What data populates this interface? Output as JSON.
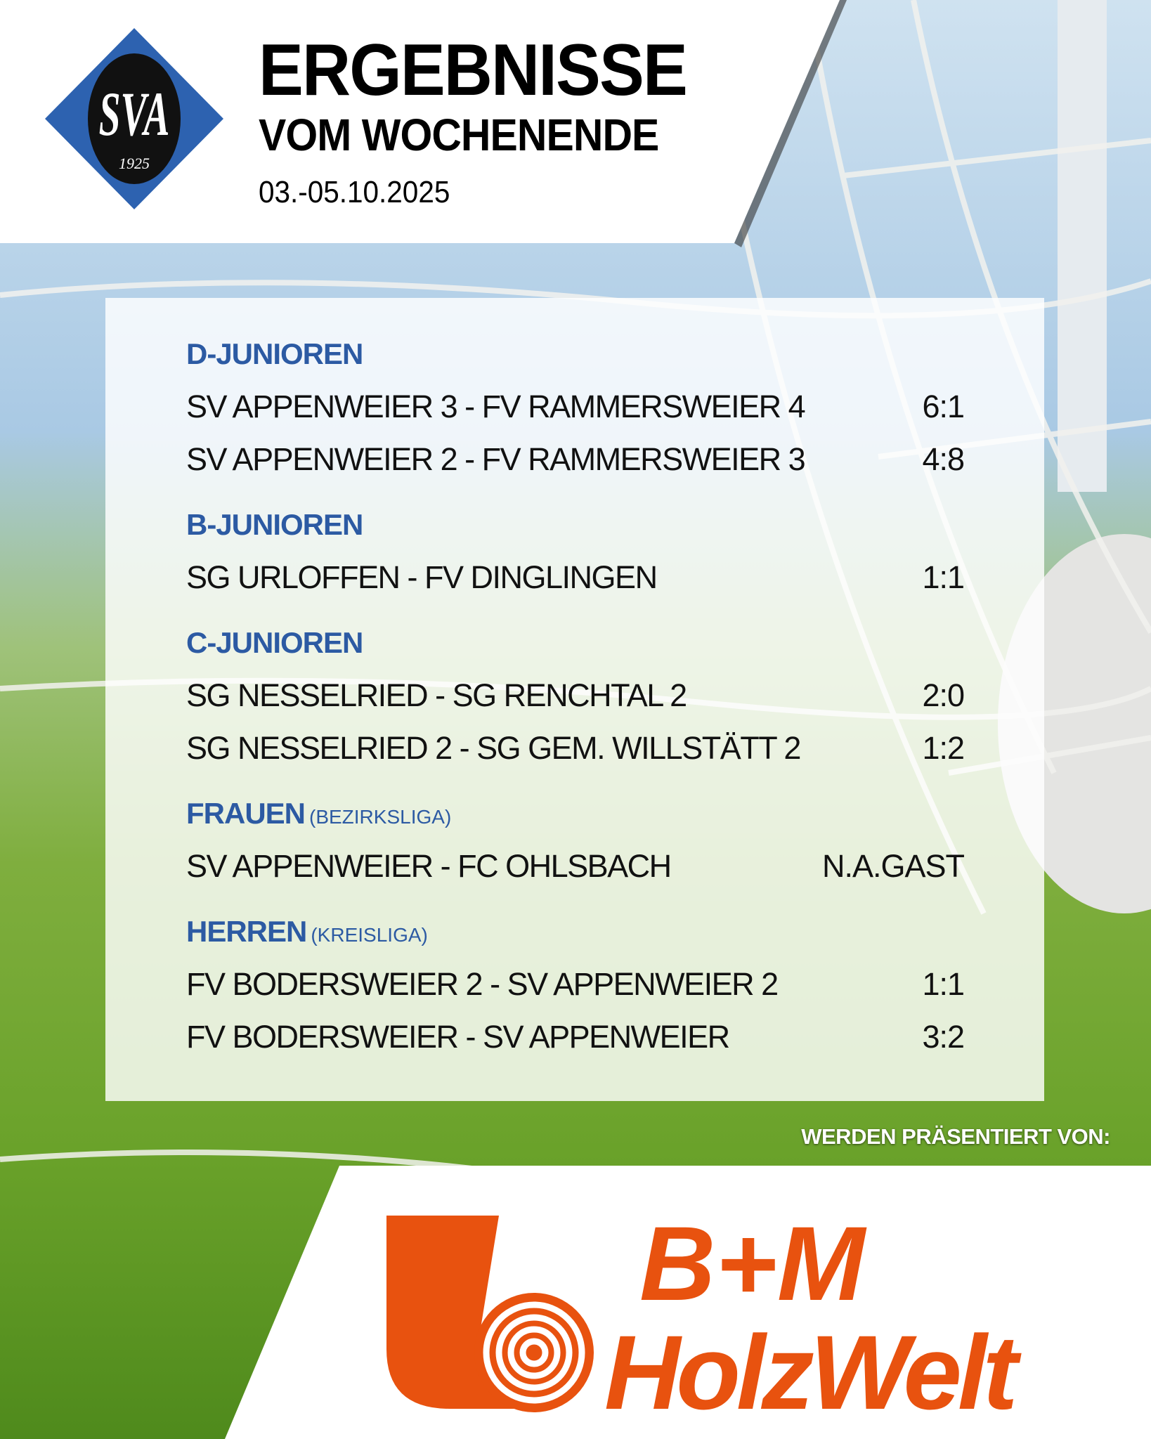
{
  "header": {
    "club_logo": {
      "text": "SVA",
      "year": "1925",
      "colors": {
        "diamond": "#2d62b0",
        "circle": "#111111",
        "lettering": "#ffffff"
      }
    },
    "title": "ERGEBNISSE",
    "subtitle": "VOM WOCHENENDE",
    "date": "03.-05.10.2025"
  },
  "results": {
    "accent_color": "#2c5aa3",
    "groups": [
      {
        "name": "D-JUNIOREN",
        "league": "",
        "matches": [
          {
            "match": "SV APPENWEIER 3 - FV RAMMERSWEIER 4",
            "score": "6:1"
          },
          {
            "match": "SV APPENWEIER 2 - FV RAMMERSWEIER 3",
            "score": "4:8"
          }
        ]
      },
      {
        "name": "B-JUNIOREN",
        "league": "",
        "matches": [
          {
            "match": "SG URLOFFEN - FV DINGLINGEN",
            "score": "1:1"
          }
        ]
      },
      {
        "name": "C-JUNIOREN",
        "league": "",
        "matches": [
          {
            "match": "SG NESSELRIED - SG RENCHTAL 2",
            "score": "2:0"
          },
          {
            "match": "SG NESSELRIED 2 - SG GEM. WILLSTÄTT 2",
            "score": "1:2"
          }
        ]
      },
      {
        "name": "FRAUEN",
        "league": "(BEZIRKSLIGA)",
        "matches": [
          {
            "match": "SV APPENWEIER - FC OHLSBACH",
            "score": "N.A.GAST"
          }
        ]
      },
      {
        "name": "HERREN",
        "league": "(KREISLIGA)",
        "matches": [
          {
            "match": "FV BODERSWEIER 2 - SV APPENWEIER 2",
            "score": "1:1"
          },
          {
            "match": "FV BODERSWEIER - SV APPENWEIER",
            "score": "3:2"
          }
        ]
      }
    ]
  },
  "sponsor": {
    "intro": "WERDEN PRÄSENTIERT VON:",
    "logo_line1": "B+M",
    "logo_line2": "HolzWelt",
    "color": "#e8520f"
  }
}
